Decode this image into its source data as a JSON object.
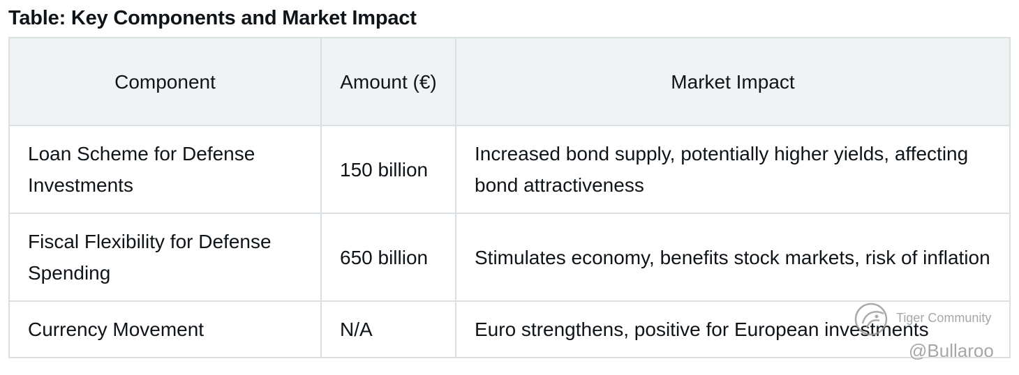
{
  "title": "Table: Key Components and Market Impact",
  "table": {
    "headers": [
      "Component",
      "Amount (€)",
      "Market Impact"
    ],
    "rows": [
      [
        "Loan Scheme for Defense Investments",
        "150 billion",
        "Increased bond supply, potentially higher yields, affecting bond attractiveness"
      ],
      [
        "Fiscal Flexibility for Defense Spending",
        "650 billion",
        "Stimulates economy, benefits stock markets, risk of inflation"
      ],
      [
        "Currency Movement",
        "N/A",
        "Euro strengthens, positive for European investments"
      ]
    ]
  },
  "watermark": {
    "brand": "Tiger Community",
    "handle": "@Bullaroo",
    "icon": "tiger-community-logo-icon"
  },
  "colors": {
    "header_background": "#eff3f4",
    "border": "#d9dfe3",
    "text": "#0f1419",
    "watermark": "#969696"
  }
}
